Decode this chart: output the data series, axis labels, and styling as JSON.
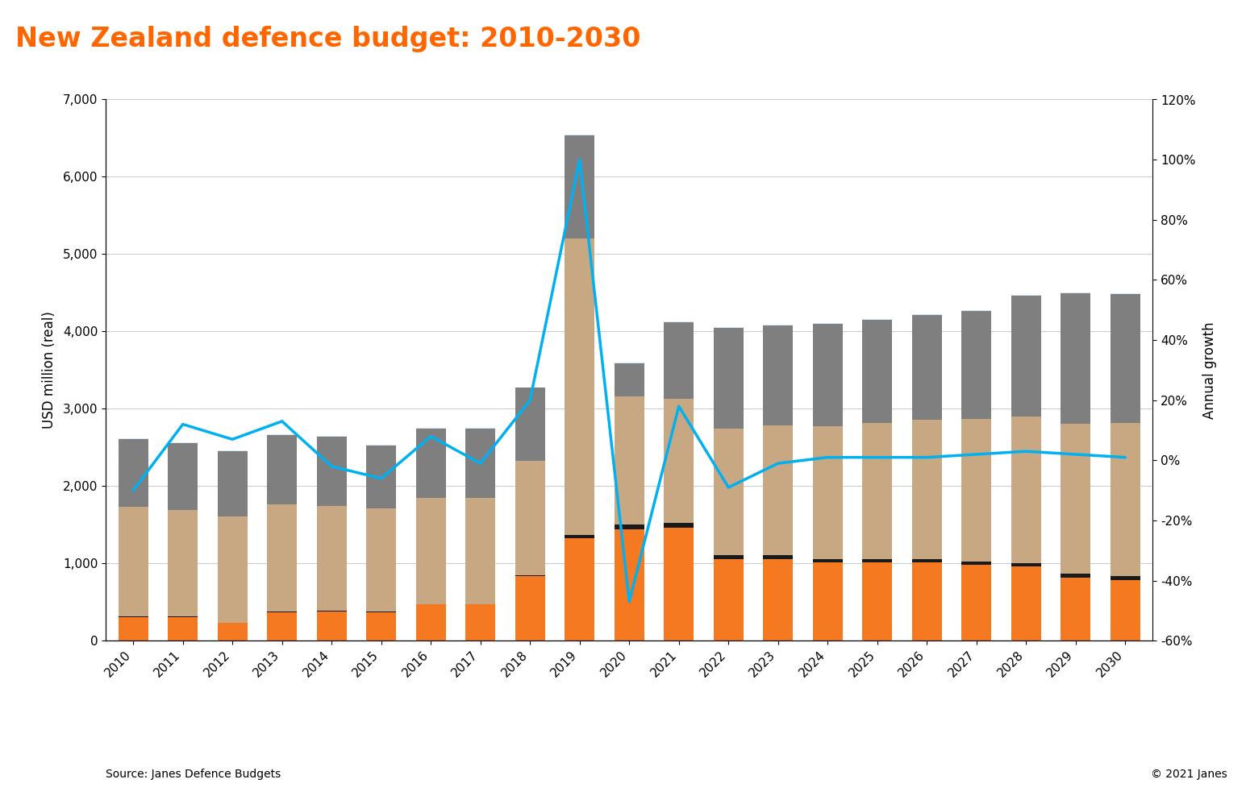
{
  "years": [
    2010,
    2011,
    2012,
    2013,
    2014,
    2015,
    2016,
    2017,
    2018,
    2019,
    2020,
    2021,
    2022,
    2023,
    2024,
    2025,
    2026,
    2027,
    2028,
    2029,
    2030
  ],
  "procurement": [
    310,
    310,
    230,
    370,
    380,
    370,
    470,
    470,
    840,
    1330,
    1440,
    1460,
    1060,
    1060,
    1010,
    1010,
    1010,
    980,
    960,
    820,
    790
  ],
  "rdnte": [
    5,
    5,
    5,
    5,
    5,
    5,
    5,
    5,
    10,
    40,
    60,
    60,
    45,
    45,
    45,
    45,
    45,
    45,
    45,
    45,
    45
  ],
  "personnel": [
    1420,
    1380,
    1370,
    1390,
    1360,
    1340,
    1370,
    1370,
    1480,
    3830,
    1660,
    1610,
    1640,
    1680,
    1720,
    1760,
    1800,
    1840,
    1900,
    1940,
    1980
  ],
  "om": [
    870,
    860,
    850,
    900,
    890,
    810,
    900,
    900,
    940,
    1340,
    430,
    990,
    1300,
    1290,
    1320,
    1340,
    1360,
    1400,
    1560,
    1690,
    1670
  ],
  "other": [
    10,
    10,
    10,
    10,
    10,
    10,
    10,
    10,
    10,
    10,
    10,
    10,
    10,
    10,
    10,
    10,
    10,
    10,
    10,
    10,
    10
  ],
  "annual_growth": [
    -0.1,
    0.12,
    0.07,
    0.13,
    -0.02,
    -0.06,
    0.08,
    -0.01,
    0.2,
    1.0,
    -0.47,
    0.18,
    -0.09,
    -0.01,
    0.01,
    0.01,
    0.01,
    0.02,
    0.03,
    0.02,
    0.01
  ],
  "title": "New Zealand defence budget: 2010-2030",
  "title_bg": "#111111",
  "title_color": "#ff6600",
  "ylabel_left": "USD million (real)",
  "ylabel_right": "Annual growth",
  "ylim_left": [
    0,
    7000
  ],
  "ylim_right": [
    -0.6,
    1.2
  ],
  "yticks_left": [
    0,
    1000,
    2000,
    3000,
    4000,
    5000,
    6000,
    7000
  ],
  "yticks_right": [
    -0.6,
    -0.4,
    -0.2,
    0.0,
    0.2,
    0.4,
    0.6,
    0.8,
    1.0,
    1.2
  ],
  "ytick_labels_right": [
    "-60%",
    "-40%",
    "-20%",
    "0%",
    "20%",
    "40%",
    "60%",
    "80%",
    "100%",
    "120%"
  ],
  "bar_width": 0.6,
  "color_procurement": "#f47920",
  "color_rdnte": "#1a1a1a",
  "color_personnel": "#c8a882",
  "color_om": "#7f7f7f",
  "color_other": "#d6e8f5",
  "color_line": "#00b0f0",
  "source_text": "Source: Janes Defence Budgets",
  "copyright_text": "© 2021 Janes",
  "orange_line_color": "#ff6600"
}
